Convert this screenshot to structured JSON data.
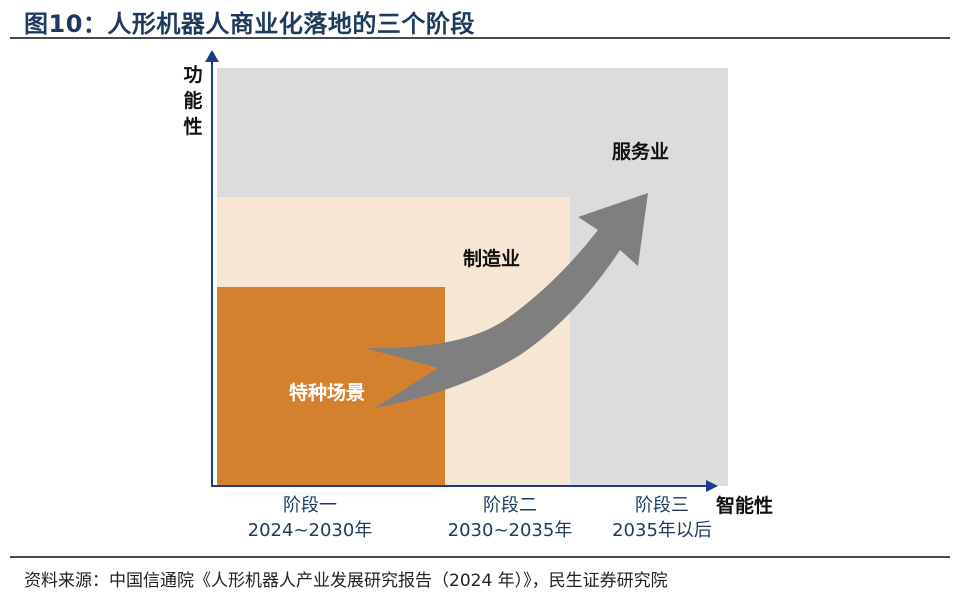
{
  "figure": {
    "title": "图10：人形机器人商业化落地的三个阶段",
    "source": "资料来源：中国信通院《人形机器人产业发展研究报告（2024 年）》，民生证券研究院"
  },
  "diagram": {
    "y_axis_label": [
      "功",
      "能",
      "性"
    ],
    "x_axis_label": "智能性",
    "zones": {
      "service": "服务业",
      "manufacturing": "制造业",
      "special": "特种场景"
    },
    "stages": [
      {
        "name": "阶段一",
        "period": "2024~2030年"
      },
      {
        "name": "阶段二",
        "period": "2030~2035年"
      },
      {
        "name": "阶段三",
        "period": "2035年以后"
      }
    ],
    "colors": {
      "service_zone": "#dcdcdc",
      "manufacturing_zone": "#f7e6d4",
      "special_zone": "#d4812f",
      "axis": "#1e3a8a",
      "arrow": "#7f7f7f"
    }
  }
}
